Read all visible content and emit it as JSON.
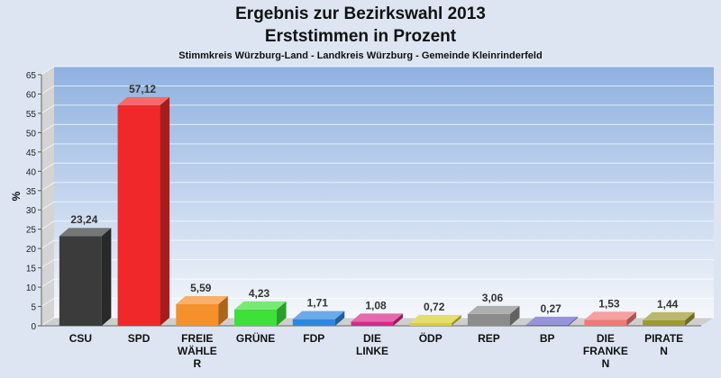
{
  "chart_data": {
    "type": "bar",
    "title": "Ergebnis zur Bezirkswahl 2013",
    "title2": "Erststimmen in Prozent",
    "subtitle": "Stimmkreis Würzburg-Land - Landkreis Würzburg - Gemeinde Kleinrinderfeld",
    "ylabel": "%",
    "xlabel": "",
    "ylim": [
      0,
      65
    ],
    "yticks": [
      0,
      5,
      10,
      15,
      20,
      25,
      30,
      35,
      40,
      45,
      50,
      55,
      60,
      65
    ],
    "grid": true,
    "categories": [
      [
        "CSU"
      ],
      [
        "SPD"
      ],
      [
        "FREIE",
        "WÄHLE",
        "R"
      ],
      [
        "GRÜNE"
      ],
      [
        "FDP"
      ],
      [
        "DIE",
        "LINKE"
      ],
      [
        "ÖDP"
      ],
      [
        "REP"
      ],
      [
        "BP"
      ],
      [
        "DIE",
        "FRANKE",
        "N"
      ],
      [
        "PIRATE",
        "N"
      ]
    ],
    "values": [
      23.24,
      57.12,
      5.59,
      4.23,
      1.71,
      1.08,
      0.72,
      3.06,
      0.27,
      1.53,
      1.44
    ],
    "value_labels": [
      "23,24",
      "57,12",
      "5,59",
      "4,23",
      "1,71",
      "1,08",
      "0,72",
      "3,06",
      "0,27",
      "1,53",
      "1,44"
    ],
    "colors": [
      "#3b3b3b",
      "#f0282a",
      "#f5902a",
      "#3ee03a",
      "#2e86e0",
      "#d8288a",
      "#d8d030",
      "#8c8c8c",
      "#6a68c8",
      "#f07878",
      "#9c9a30"
    ]
  }
}
